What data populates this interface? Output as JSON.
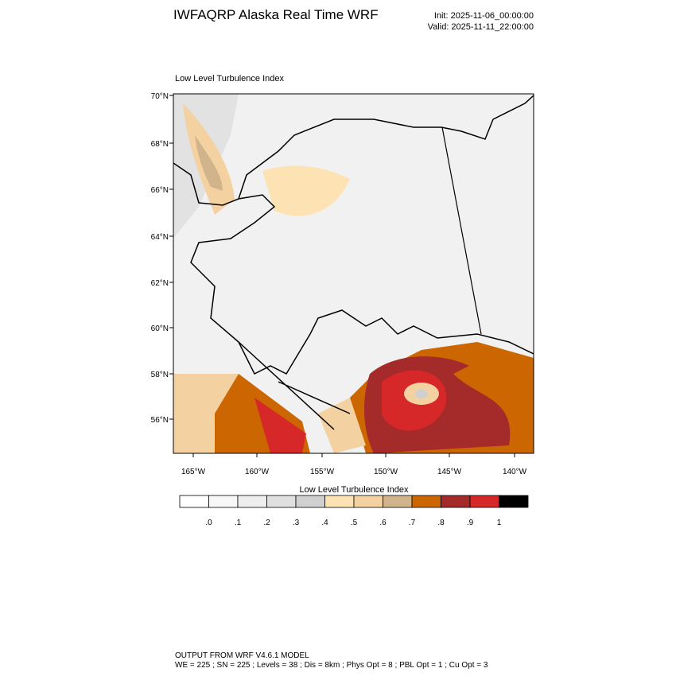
{
  "header": {
    "title": "IWFAQRP Alaska Real Time WRF",
    "init": "Init: 2025-11-06_00:00:00",
    "valid": "Valid: 2025-11-11_22:00:00"
  },
  "map": {
    "label": "Low Level Turbulence Index",
    "lat_labels": [
      "70°N",
      "68°N",
      "66°N",
      "64°N",
      "62°N",
      "60°N",
      "58°N",
      "56°N"
    ],
    "lon_labels": [
      "165°W",
      "160°W",
      "155°W",
      "150°W",
      "145°W",
      "140°W"
    ]
  },
  "colorbar": {
    "title": "Low Level Turbulence Index",
    "labels": [
      ".0",
      ".1",
      ".2",
      ".3",
      ".4",
      ".5",
      ".6",
      ".7",
      ".8",
      ".9",
      "1"
    ],
    "colors": [
      "#ffffff",
      "#f7f7f7",
      "#eeeeee",
      "#e0e0e0",
      "#d0d0d0",
      "#fde3b3",
      "#f3d1a0",
      "#d2b48c",
      "#cc6600",
      "#a52a2a",
      "#d62828",
      "#000000"
    ]
  },
  "footer": {
    "line1": "OUTPUT FROM WRF V4.6.1 MODEL",
    "line2": "WE = 225 ; SN = 225 ; Levels = 38 ; Dis = 8km ; Phys Opt = 8 ; PBL Opt = 1 ; Cu Opt = 3"
  }
}
